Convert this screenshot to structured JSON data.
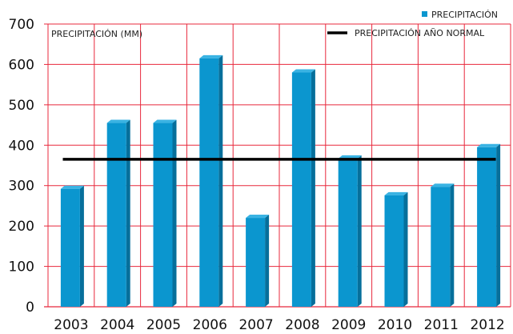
{
  "chart_data": {
    "type": "bar",
    "ylabel": "PRECIPITACIÓN (MM)",
    "categories": [
      "2003",
      "2004",
      "2005",
      "2006",
      "2007",
      "2008",
      "2009",
      "2010",
      "2011",
      "2012"
    ],
    "series": [
      {
        "name": "PRECIPITACIÓN",
        "values": [
          292,
          455,
          455,
          615,
          220,
          580,
          367,
          276,
          297,
          395
        ],
        "color": "#0b96cf"
      }
    ],
    "reference_line": {
      "name": "PRECIPITACIÓN AÑO NORMAL",
      "value": 365,
      "color": "#000000"
    },
    "ylim": [
      0,
      700
    ],
    "yticks": [
      0,
      100,
      200,
      300,
      400,
      500,
      600,
      700
    ],
    "grid": true,
    "grid_color": "#e8283c",
    "legend_position": "top-right",
    "style": "3d-bars"
  }
}
